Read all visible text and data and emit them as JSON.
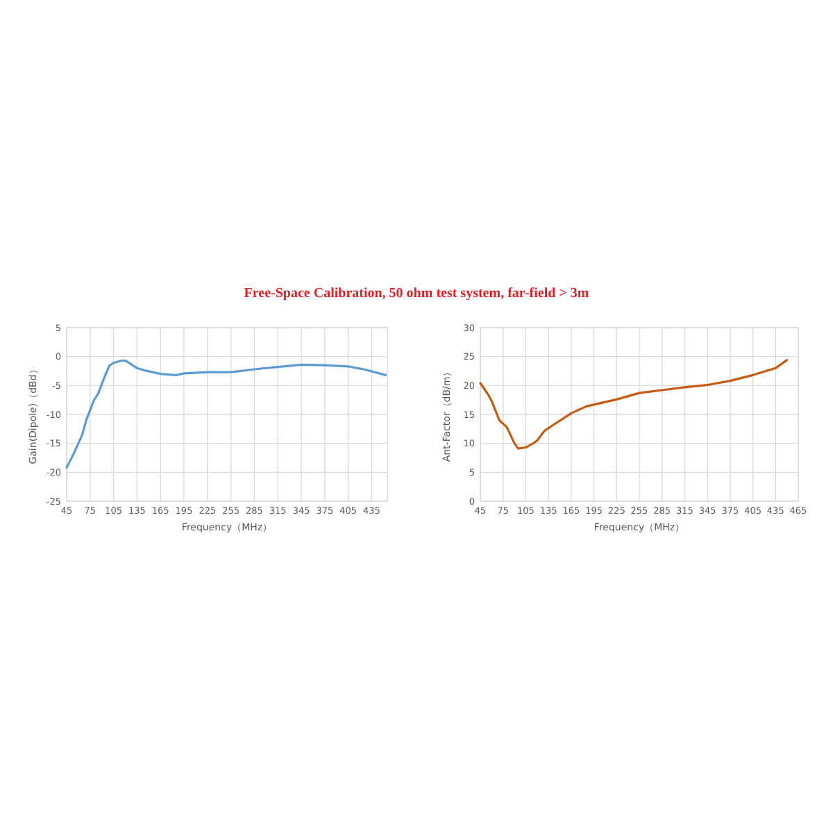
{
  "chart_data": [
    {
      "type": "line",
      "title": "Free-Space Calibration,  50 ohm  test system,  far-field > 3m",
      "xlabel": "Frequency（MHz）",
      "ylabel": "Gain(Dipole)（dBd）",
      "x": [
        45,
        55,
        65,
        70,
        80,
        85,
        95,
        100,
        105,
        115,
        120,
        125,
        135,
        145,
        165,
        185,
        195,
        225,
        255,
        285,
        315,
        345,
        375,
        405,
        425,
        453
      ],
      "series": [
        {
          "color": "#5b9bd5",
          "values": [
            -19.2,
            -16.5,
            -13.5,
            -11,
            -7.5,
            -6.5,
            -3,
            -1.5,
            -1.1,
            -0.7,
            -0.7,
            -1.1,
            -2,
            -2.4,
            -3,
            -3.2,
            -2.9,
            -2.7,
            -2.7,
            -2.2,
            -1.8,
            -1.4,
            -1.5,
            -1.7,
            -2.2,
            -3.2
          ]
        }
      ],
      "xlim": [
        45,
        455
      ],
      "xticks": [
        45,
        75,
        105,
        135,
        165,
        195,
        225,
        255,
        285,
        315,
        345,
        375,
        405,
        435
      ],
      "ylim": [
        -25,
        5
      ],
      "yticks": [
        -25,
        -20,
        -15,
        -10,
        -5,
        0,
        5
      ],
      "grid": true
    },
    {
      "type": "line",
      "xlabel": "Frequency（MHz）",
      "ylabel": "Ant-Factor（dB/m）",
      "x": [
        45,
        55,
        60,
        70,
        80,
        90,
        95,
        105,
        115,
        120,
        130,
        145,
        165,
        185,
        205,
        225,
        255,
        285,
        315,
        345,
        375,
        405,
        435,
        450
      ],
      "series": [
        {
          "color": "#c55a11",
          "values": [
            20.4,
            18.5,
            17.3,
            14,
            12.8,
            10,
            9.1,
            9.3,
            10,
            10.5,
            12.2,
            13.5,
            15.2,
            16.4,
            17,
            17.6,
            18.7,
            19.2,
            19.7,
            20.1,
            20.8,
            21.8,
            23,
            24.4
          ]
        }
      ],
      "xlim": [
        45,
        465
      ],
      "xticks": [
        45,
        75,
        105,
        135,
        165,
        195,
        225,
        255,
        285,
        315,
        345,
        375,
        405,
        435,
        465
      ],
      "ylim": [
        0,
        30
      ],
      "yticks": [
        0,
        5,
        10,
        15,
        20,
        25,
        30
      ],
      "grid": true
    }
  ]
}
